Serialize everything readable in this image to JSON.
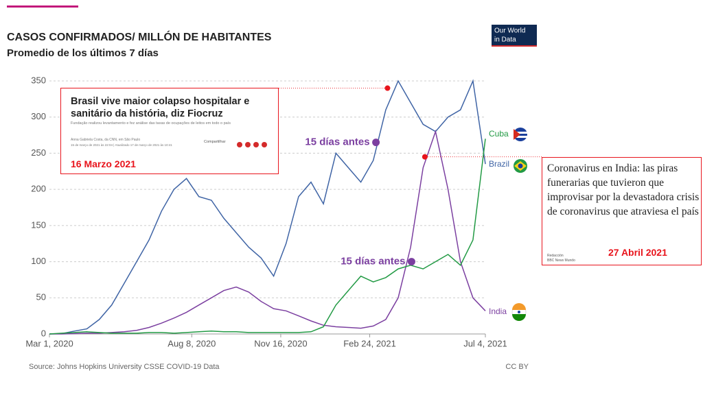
{
  "chart_data": {
    "type": "line",
    "title": "CASOS CONFIRMADOS/ MILLÓN DE HABITANTES",
    "subtitle": "Promedio de los últimos 7 días",
    "logo": [
      "Our World",
      "in Data"
    ],
    "source": "Source: Johns Hopkins University CSSE COVID-19 Data",
    "license": "CC BY",
    "xlim": [
      "2020-03-01",
      "2021-07-04"
    ],
    "xticks": [
      {
        "value": "2020-03-01",
        "label": "Mar 1, 2020"
      },
      {
        "value": "2020-08-08",
        "label": "Aug 8, 2020"
      },
      {
        "value": "2020-11-16",
        "label": "Nov 16, 2020"
      },
      {
        "value": "2021-02-24",
        "label": "Feb 24, 2021"
      },
      {
        "value": "2021-07-04",
        "label": "Jul 4, 2021"
      }
    ],
    "ylim": [
      0,
      350
    ],
    "yticks": [
      0,
      50,
      100,
      150,
      200,
      250,
      300,
      350
    ],
    "grid": true,
    "x": [
      "2020-03-01",
      "2020-03-15",
      "2020-03-29",
      "2020-04-12",
      "2020-04-26",
      "2020-05-10",
      "2020-05-24",
      "2020-06-07",
      "2020-06-21",
      "2020-07-05",
      "2020-07-19",
      "2020-08-02",
      "2020-08-16",
      "2020-08-30",
      "2020-09-13",
      "2020-09-27",
      "2020-10-11",
      "2020-10-25",
      "2020-11-08",
      "2020-11-22",
      "2020-12-06",
      "2020-12-20",
      "2021-01-03",
      "2021-01-17",
      "2021-01-31",
      "2021-02-14",
      "2021-02-28",
      "2021-03-14",
      "2021-03-28",
      "2021-04-11",
      "2021-04-25",
      "2021-05-09",
      "2021-05-23",
      "2021-06-06",
      "2021-06-20",
      "2021-07-04"
    ],
    "series": [
      {
        "name": "Brazil",
        "color": "#3f64a5",
        "values": [
          0,
          0.5,
          4,
          7,
          20,
          40,
          70,
          100,
          130,
          170,
          200,
          215,
          190,
          185,
          160,
          140,
          120,
          105,
          80,
          125,
          190,
          210,
          180,
          250,
          230,
          210,
          240,
          310,
          350,
          320,
          290,
          280,
          300,
          310,
          350,
          235
        ]
      },
      {
        "name": "India",
        "color": "#7b3fa0",
        "values": [
          0,
          0,
          0.5,
          1,
          1,
          2,
          3,
          5,
          9,
          15,
          22,
          30,
          40,
          50,
          60,
          65,
          58,
          45,
          35,
          32,
          25,
          18,
          12,
          10,
          9,
          8,
          11,
          20,
          50,
          120,
          230,
          280,
          200,
          100,
          50,
          32
        ]
      },
      {
        "name": "Cuba",
        "color": "#229a44",
        "values": [
          0,
          1,
          2,
          3,
          2,
          1,
          1,
          1,
          2,
          2,
          1,
          2,
          3,
          4,
          3,
          3,
          2,
          2,
          2,
          2,
          2,
          3,
          10,
          40,
          60,
          80,
          72,
          78,
          90,
          95,
          90,
          100,
          110,
          95,
          130,
          270
        ]
      }
    ],
    "markers": [
      {
        "x": "2021-03-16",
        "y": 340,
        "color": "#e8141c"
      },
      {
        "x": "2021-04-27",
        "y": 245,
        "color": "#e8141c"
      },
      {
        "x": "2021-03-03",
        "y": 265,
        "color": "#7b3fa0",
        "label": "15 días antes"
      },
      {
        "x": "2021-04-12",
        "y": 100,
        "color": "#7b3fa0",
        "label": "15 días antes"
      }
    ],
    "news": [
      {
        "headline": "Brasil vive maior colapso hospitalar e sanitário da história, diz Fiocruz",
        "lead": "Fundação realizou levantamento e fez análise das taxas de ocupações de leitos em todo o país",
        "byline": "Anna Gabriela Costa, da CNN, em São Paulo",
        "time": "15 de março de 2021 às 22:04 | Atualizado 17 de março de 2021 às 10:41",
        "share": "Compartilhar",
        "date": "16 Marzo 2021"
      },
      {
        "headline": "Coronavirus en India: las piras funerarias que tuvieron que improvisar por la devastadora crisis de coronavirus que atraviesa el país",
        "byline": "Redacción",
        "time": "BBC News Mundo",
        "date": "27 Abril 2021"
      }
    ]
  }
}
